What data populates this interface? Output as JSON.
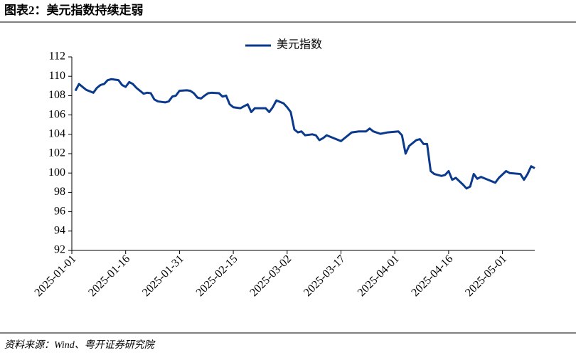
{
  "chart_data": {
    "type": "line",
    "title": "图表2：美元指数持续走弱",
    "source": "资料来源：Wind、粤开证券研究院",
    "x": [
      "2025-01-02",
      "2025-01-03",
      "2025-01-04",
      "2025-01-05",
      "2025-01-07",
      "2025-01-08",
      "2025-01-09",
      "2025-01-10",
      "2025-01-11",
      "2025-01-12",
      "2025-01-14",
      "2025-01-15",
      "2025-01-16",
      "2025-01-17",
      "2025-01-18",
      "2025-01-19",
      "2025-01-21",
      "2025-01-22",
      "2025-01-23",
      "2025-01-24",
      "2025-01-25",
      "2025-01-27",
      "2025-01-28",
      "2025-01-29",
      "2025-01-30",
      "2025-01-31",
      "2025-02-02",
      "2025-02-03",
      "2025-02-04",
      "2025-02-05",
      "2025-02-06",
      "2025-02-07",
      "2025-02-08",
      "2025-02-09",
      "2025-02-11",
      "2025-02-12",
      "2025-02-13",
      "2025-02-14",
      "2025-02-15",
      "2025-02-17",
      "2025-02-18",
      "2025-02-19",
      "2025-02-20",
      "2025-02-21",
      "2025-02-23",
      "2025-02-24",
      "2025-02-25",
      "2025-02-26",
      "2025-02-27",
      "2025-03-01",
      "2025-03-02",
      "2025-03-03",
      "2025-03-04",
      "2025-03-05",
      "2025-03-06",
      "2025-03-07",
      "2025-03-09",
      "2025-03-10",
      "2025-03-11",
      "2025-03-12",
      "2025-03-13",
      "2025-03-15",
      "2025-03-17",
      "2025-03-18",
      "2025-03-20",
      "2025-03-22",
      "2025-03-24",
      "2025-03-25",
      "2025-03-26",
      "2025-03-28",
      "2025-03-30",
      "2025-04-02",
      "2025-04-03",
      "2025-04-04",
      "2025-04-05",
      "2025-04-07",
      "2025-04-08",
      "2025-04-09",
      "2025-04-10",
      "2025-04-11",
      "2025-04-12",
      "2025-04-14",
      "2025-04-15",
      "2025-04-16",
      "2025-04-17",
      "2025-04-18",
      "2025-04-20",
      "2025-04-21",
      "2025-04-22",
      "2025-04-23",
      "2025-04-24",
      "2025-04-25",
      "2025-04-27",
      "2025-04-29",
      "2025-04-30",
      "2025-05-02",
      "2025-05-03",
      "2025-05-06",
      "2025-05-07",
      "2025-05-08",
      "2025-05-09",
      "2025-05-10"
    ],
    "series": [
      {
        "name": "美元指数",
        "color": "#0b3a8c",
        "values": [
          108.5,
          109.2,
          108.9,
          108.6,
          108.3,
          108.8,
          109.1,
          109.2,
          109.6,
          109.7,
          109.6,
          109.1,
          108.9,
          109.4,
          109.2,
          108.8,
          108.2,
          108.3,
          108.25,
          107.6,
          107.4,
          107.3,
          107.4,
          107.9,
          108.0,
          108.5,
          108.55,
          108.5,
          108.25,
          107.8,
          107.7,
          108.0,
          108.25,
          108.3,
          108.25,
          107.9,
          108.0,
          107.1,
          106.8,
          106.7,
          106.9,
          107.1,
          106.3,
          106.7,
          106.7,
          106.7,
          106.3,
          106.8,
          107.5,
          107.2,
          106.8,
          106.3,
          104.5,
          104.2,
          104.3,
          103.9,
          104.0,
          103.9,
          103.4,
          103.6,
          103.9,
          103.6,
          103.3,
          103.6,
          104.2,
          104.3,
          104.3,
          104.6,
          104.3,
          104.05,
          104.2,
          104.3,
          103.9,
          102.0,
          102.8,
          103.4,
          103.5,
          103.0,
          103.0,
          100.2,
          99.9,
          99.7,
          99.8,
          100.2,
          99.3,
          99.5,
          98.8,
          98.4,
          98.6,
          99.9,
          99.4,
          99.6,
          99.3,
          99.0,
          99.5,
          100.2,
          100.0,
          99.9,
          99.3,
          99.9,
          100.7,
          100.5
        ]
      }
    ],
    "xlim": [
      "2025-01-01",
      "2025-05-10"
    ],
    "xticks": [
      "2025-01-01",
      "2025-01-16",
      "2025-01-31",
      "2025-02-15",
      "2025-03-02",
      "2025-03-17",
      "2025-04-01",
      "2025-04-16",
      "2025-05-01"
    ],
    "ylim": [
      92,
      112
    ],
    "yticks": [
      92,
      94,
      96,
      98,
      100,
      102,
      104,
      106,
      108,
      110,
      112
    ],
    "legend": "top"
  }
}
